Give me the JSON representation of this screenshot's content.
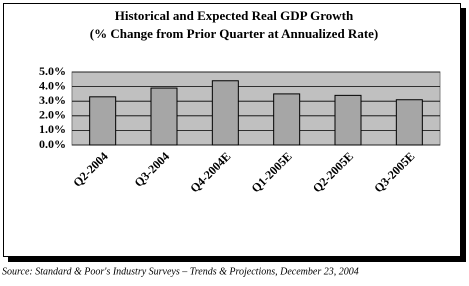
{
  "chart_data": {
    "type": "bar",
    "title": "Historical and Expected Real GDP Growth",
    "subtitle": "(% Change from Prior Quarter at Annualized Rate)",
    "categories": [
      "Q2-2004",
      "Q3-2004",
      "Q4-2004E",
      "Q1-2005E",
      "Q2-2005E",
      "Q3-2005E"
    ],
    "values": [
      3.3,
      3.9,
      4.4,
      3.5,
      3.4,
      3.1
    ],
    "color": "#a6a6a6",
    "plot_background": "#c0c0c0",
    "ylim": [
      0,
      5
    ],
    "yticks": [
      {
        "value": 0,
        "label": "0.0%"
      },
      {
        "value": 1,
        "label": "1.0%"
      },
      {
        "value": 2,
        "label": "2.0%"
      },
      {
        "value": 3,
        "label": "3.0%"
      },
      {
        "value": 4,
        "label": "4.0%"
      },
      {
        "value": 5,
        "label": "5.0%"
      }
    ],
    "grid": true,
    "source": "Source: Standard & Poor's Industry Surveys – Trends & Projections, December 23, 2004"
  }
}
